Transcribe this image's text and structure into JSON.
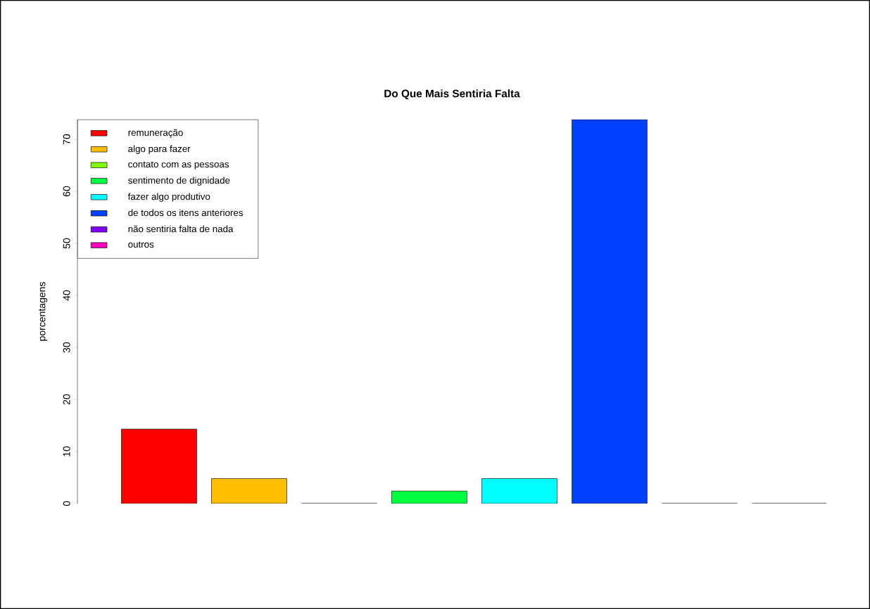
{
  "chart_data": {
    "type": "bar",
    "title": "Do Que Mais Sentiria Falta",
    "ylabel": "porcentagens",
    "categories": [
      null
    ],
    "series": [
      {
        "name": "remuneração",
        "color": "#ff0000",
        "values": [
          14.3
        ]
      },
      {
        "name": "algo para fazer",
        "color": "#ffbf00",
        "values": [
          4.8
        ]
      },
      {
        "name": "contato com as pessoas",
        "color": "#80ff00",
        "values": [
          0
        ]
      },
      {
        "name": "sentimento de dignidade",
        "color": "#00ff40",
        "values": [
          2.4
        ]
      },
      {
        "name": "fazer algo produtivo",
        "color": "#00ffff",
        "values": [
          4.8
        ]
      },
      {
        "name": "de todos os itens anteriores",
        "color": "#0040ff",
        "values": [
          73.8
        ]
      },
      {
        "name": "não sentiria falta de nada",
        "color": "#8000ff",
        "values": [
          0
        ]
      },
      {
        "name": "outros",
        "color": "#ff00bf",
        "values": [
          0
        ]
      }
    ],
    "ylim": [
      0,
      73.8
    ],
    "yticks": [
      0,
      10,
      20,
      30,
      40,
      50,
      60,
      70
    ],
    "legend": "top left",
    "tick_labels": "y"
  }
}
